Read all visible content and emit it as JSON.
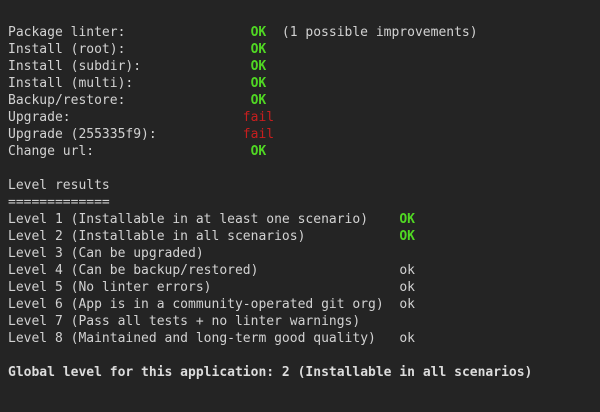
{
  "colors": {
    "background": "#242424",
    "foreground": "#d2d2d2",
    "ok_green": "#50d723",
    "fail_red": "#c81e1e",
    "bold_white": "#dcdcdc"
  },
  "test_results": {
    "rows": [
      {
        "label": "Package linter:",
        "status": "OK",
        "kind": "ok",
        "note": "(1 possible improvements)"
      },
      {
        "label": "Install (root):",
        "status": "OK",
        "kind": "ok",
        "note": ""
      },
      {
        "label": "Install (subdir):",
        "status": "OK",
        "kind": "ok",
        "note": ""
      },
      {
        "label": "Install (multi):",
        "status": "OK",
        "kind": "ok",
        "note": ""
      },
      {
        "label": "Backup/restore:",
        "status": "OK",
        "kind": "ok",
        "note": ""
      },
      {
        "label": "Upgrade:",
        "status": "fail",
        "kind": "fail",
        "note": ""
      },
      {
        "label": "Upgrade (255335f9):",
        "status": "fail",
        "kind": "fail",
        "note": ""
      },
      {
        "label": "Change url:",
        "status": "OK",
        "kind": "ok",
        "note": ""
      }
    ]
  },
  "level_results": {
    "title": "Level results",
    "underline": "=============",
    "rows": [
      {
        "label": "Level 1 (Installable in at least one scenario)",
        "status": "OK",
        "kind": "ok"
      },
      {
        "label": "Level 2 (Installable in all scenarios)",
        "status": "OK",
        "kind": "ok"
      },
      {
        "label": "Level 3 (Can be upgraded)",
        "status": "",
        "kind": "none"
      },
      {
        "label": "Level 4 (Can be backup/restored)",
        "status": "ok",
        "kind": "ok-plain"
      },
      {
        "label": "Level 5 (No linter errors)",
        "status": "ok",
        "kind": "ok-plain"
      },
      {
        "label": "Level 6 (App is in a community-operated git org)",
        "status": "ok",
        "kind": "ok-plain"
      },
      {
        "label": "Level 7 (Pass all tests + no linter warnings)",
        "status": "",
        "kind": "none"
      },
      {
        "label": "Level 8 (Maintained and long-term good quality)",
        "status": "ok",
        "kind": "ok-plain"
      }
    ]
  },
  "summary": {
    "global_line": "Global level for this application: 2 (Installable in all scenarios)"
  }
}
